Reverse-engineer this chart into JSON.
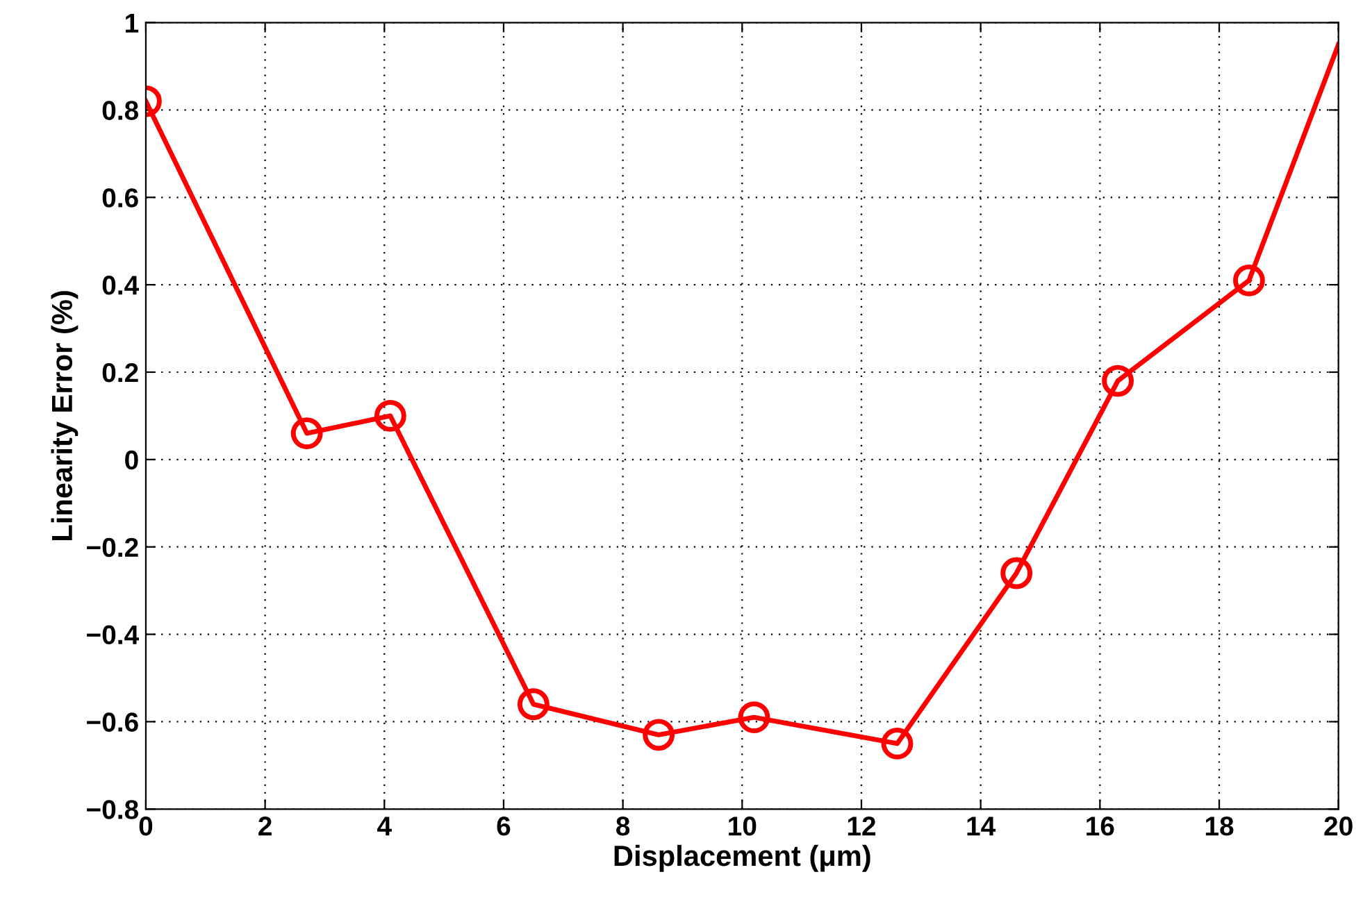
{
  "chart_data": {
    "type": "line",
    "xlabel": "Displacement (μm)",
    "ylabel": "Linearity Error (%)",
    "series": [
      {
        "color": "#ff0000",
        "marker": "circle",
        "x": [
          0,
          2.7,
          4.1,
          6.5,
          8.6,
          10.2,
          12.6,
          14.6,
          16.3,
          18.5
        ],
        "values": [
          0.82,
          0.06,
          0.1,
          -0.56,
          -0.63,
          -0.59,
          -0.65,
          -0.26,
          0.18,
          0.41
        ]
      },
      {
        "color": "#ff0000",
        "marker": "none",
        "x": [
          18.5,
          20
        ],
        "values": [
          0.41,
          0.95
        ]
      }
    ],
    "xlim": [
      0,
      20
    ],
    "xticks": [
      0,
      2,
      4,
      6,
      8,
      10,
      12,
      14,
      16,
      18,
      20
    ],
    "ylim": [
      -0.8,
      1
    ],
    "yticks": [
      {
        "value": -0.8,
        "label": "−0.8"
      },
      {
        "value": -0.6,
        "label": "−0.6"
      },
      {
        "value": -0.4,
        "label": "−0.4"
      },
      {
        "value": -0.2,
        "label": "−0.2"
      },
      0,
      0.2,
      0.4,
      0.6,
      0.8,
      1
    ],
    "grid": true,
    "line_style": "solid"
  }
}
